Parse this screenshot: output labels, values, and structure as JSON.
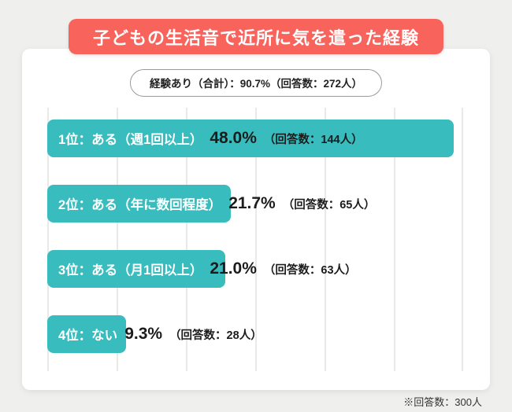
{
  "title": "子どもの生活音で近所に気を遣った経験",
  "summary_pill": "経験あり（合計）：90.7%（回答数：272人）",
  "footnote": "※回答数：300人",
  "colors": {
    "banner": "#f8635c",
    "bar": "#38bcbd",
    "card": "#ffffff",
    "background": "#efefed",
    "gridline": "#e9e9e6",
    "text": "#1c1c1c"
  },
  "chart_data": {
    "type": "bar",
    "orientation": "horizontal",
    "title": "子どもの生活音で近所に気を遣った経験",
    "subtitle": "経験あり（合計）：90.7%（回答数：272人）",
    "categories": [
      "1位：ある（週1回以上）",
      "2位：ある（年に数回程度）",
      "3位：ある（月1回以上）",
      "4位：ない"
    ],
    "values": [
      48.0,
      21.7,
      21.0,
      9.3
    ],
    "counts": [
      144,
      65,
      63,
      28
    ],
    "value_labels": [
      "48.0%",
      "21.7%",
      "21.0%",
      "9.3%"
    ],
    "count_labels": [
      "（回答数：144人）",
      "（回答数：65人）",
      "（回答数：63人）",
      "（回答数：28人）"
    ],
    "total_respondents": 300,
    "xlim": [
      0,
      50
    ],
    "grid": true,
    "gridline_count": 7,
    "legend": "none",
    "footnote": "※回答数：300人"
  }
}
